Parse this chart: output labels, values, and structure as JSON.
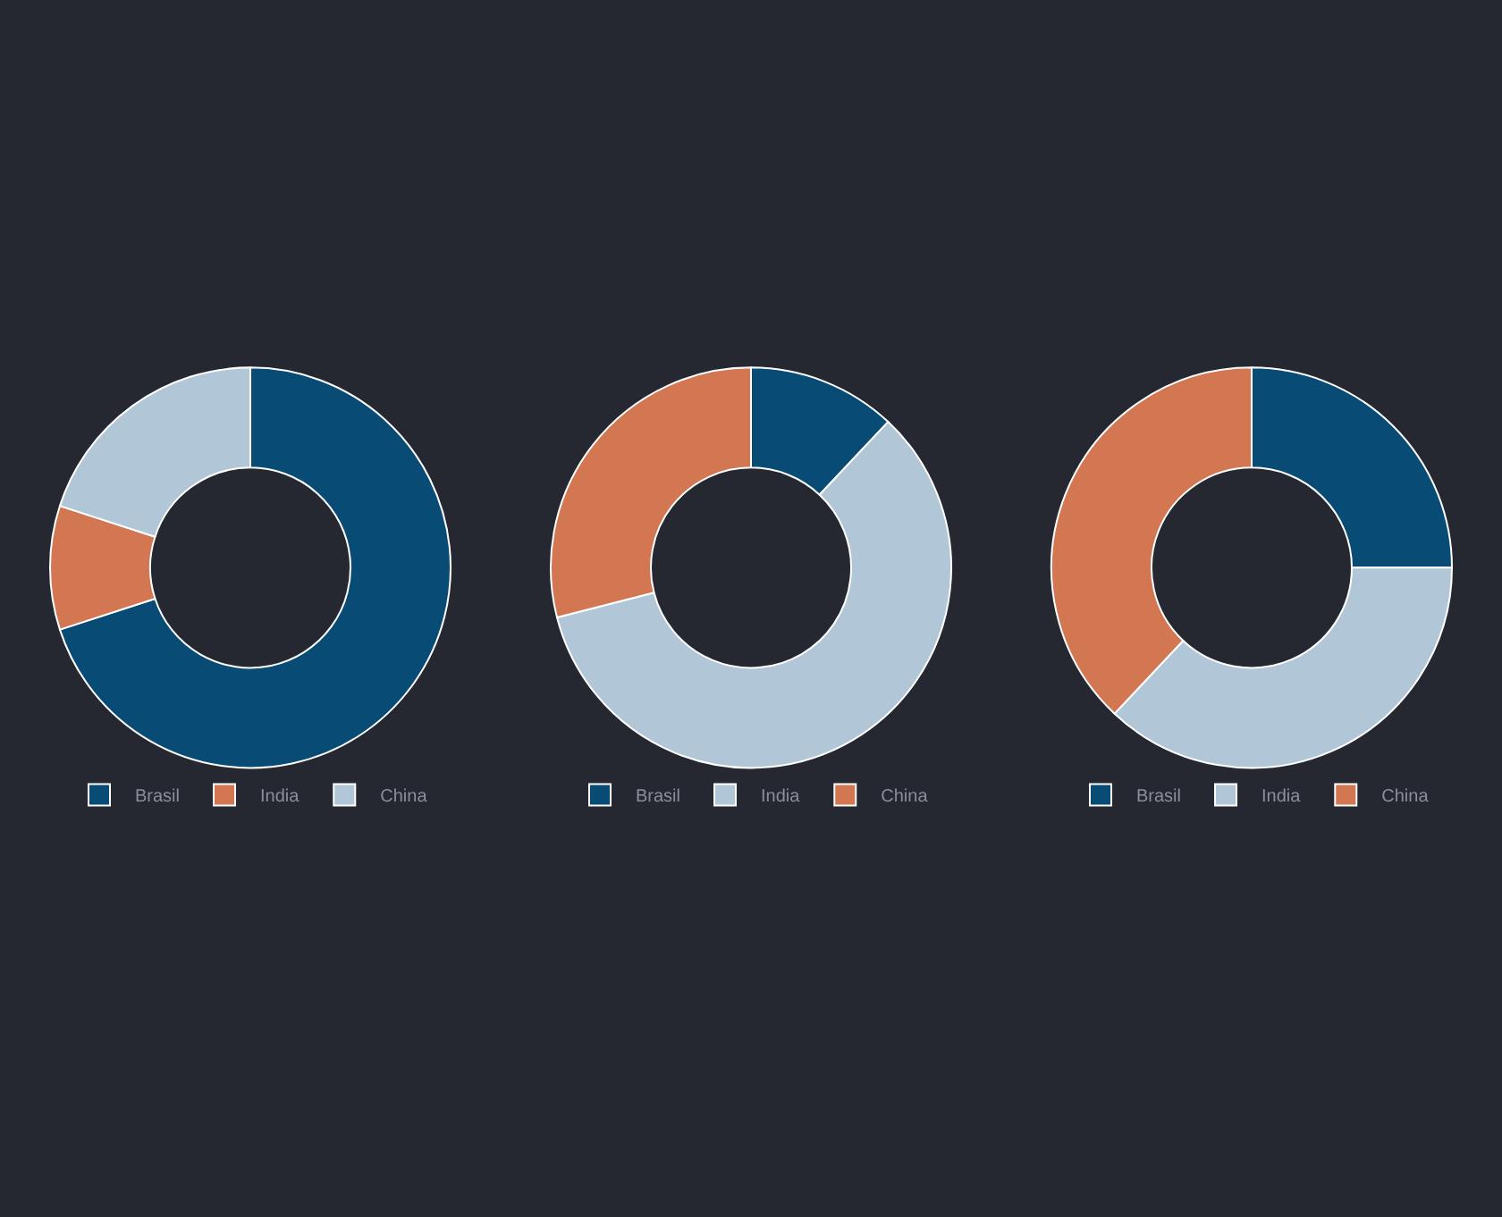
{
  "chart_data": [
    {
      "type": "donut",
      "categories": [
        "Brasil",
        "India",
        "China"
      ],
      "values": [
        70,
        10,
        20
      ],
      "colors": [
        "#084c76",
        "#d37652",
        "#b1c6d7"
      ],
      "legend": "bottom"
    },
    {
      "type": "donut",
      "categories": [
        "Brasil",
        "India",
        "China"
      ],
      "values": [
        12,
        59,
        29
      ],
      "colors": [
        "#084c76",
        "#b1c6d7",
        "#d37652"
      ],
      "legend": "bottom"
    },
    {
      "type": "donut",
      "categories": [
        "Brasil",
        "India",
        "China"
      ],
      "values": [
        25,
        37,
        38
      ],
      "colors": [
        "#084c76",
        "#b1c6d7",
        "#d37652"
      ],
      "legend": "bottom"
    }
  ]
}
